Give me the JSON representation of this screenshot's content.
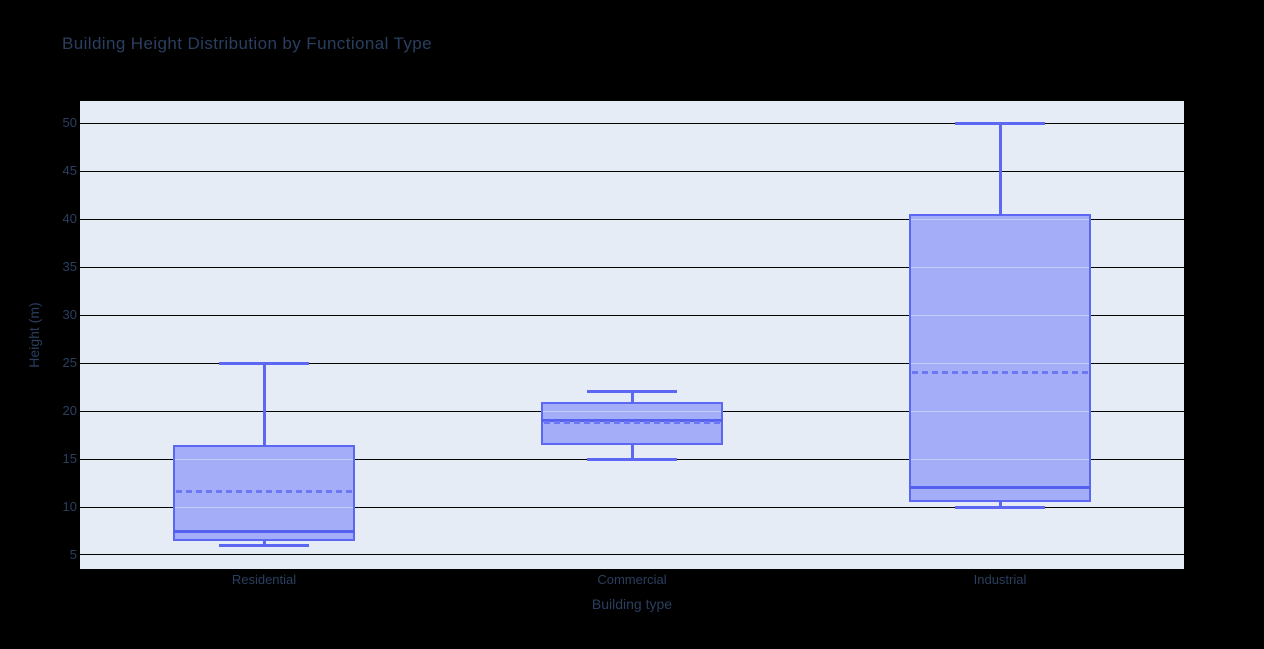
{
  "chart_data": {
    "type": "box",
    "title": "Building Height Distribution by Functional Type",
    "xlabel": "Building type",
    "ylabel": "Height (m)",
    "categories": [
      "Residential",
      "Commercial",
      "Industrial"
    ],
    "series": [
      {
        "name": "Residential",
        "lower_whisker": 6,
        "q1": 6.5,
        "median": 7.5,
        "mean": 11.6,
        "q3": 16.5,
        "upper_whisker": 25
      },
      {
        "name": "Commercial",
        "lower_whisker": 15,
        "q1": 16.5,
        "median": 19,
        "mean": 18.8,
        "q3": 21,
        "upper_whisker": 22
      },
      {
        "name": "Industrial",
        "lower_whisker": 10,
        "q1": 10.5,
        "median": 12,
        "mean": 24,
        "q3": 40.5,
        "upper_whisker": 50
      }
    ],
    "yticks": [
      5,
      10,
      15,
      20,
      25,
      30,
      35,
      40,
      45,
      50
    ],
    "ylim": [
      3.54,
      52.33
    ],
    "grid": true,
    "legend": false,
    "mean_line_style": "dashed",
    "colors": {
      "paper_bg": "#000000",
      "plot_bg": "#e5ecf6",
      "grid": "#000000",
      "box_line": "#5c68f3",
      "box_fill": "#a4adf8",
      "median_line": "#5560ee",
      "mean_line": "#6d77f3",
      "text": "#2a3f5f"
    }
  }
}
